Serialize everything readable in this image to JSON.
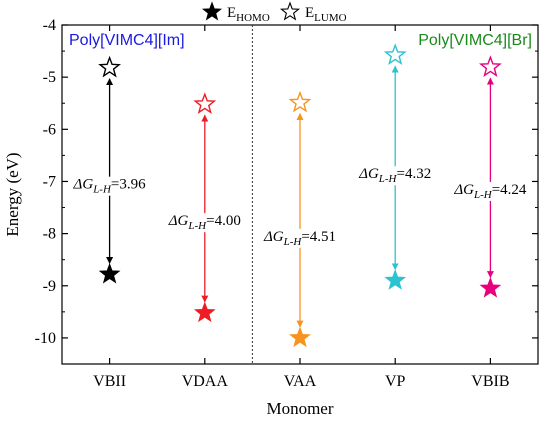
{
  "chart_data": {
    "type": "scatter",
    "xlabel": "Monomer",
    "ylabel": "Energy (eV)",
    "ylim": [
      -10.5,
      -4
    ],
    "yticks": [
      -4,
      -5,
      -6,
      -7,
      -8,
      -9,
      -10
    ],
    "ytick_labels": [
      "-4",
      "-5",
      "-6",
      "-7",
      "-8",
      "-9",
      "-10"
    ],
    "categories": [
      "VBII",
      "VDAA",
      "VAA",
      "VP",
      "VBIB"
    ],
    "legend": {
      "placement": "top-center",
      "entries": [
        {
          "marker": "filled-star",
          "label_main": "E",
          "label_sub": "HOMO"
        },
        {
          "marker": "open-star",
          "label_main": "E",
          "label_sub": "LUMO"
        }
      ]
    },
    "series": [
      {
        "name": "E_HOMO",
        "marker": "filled-star",
        "values": [
          -8.78,
          -9.52,
          -10.0,
          -8.9,
          -9.05
        ]
      },
      {
        "name": "E_LUMO",
        "marker": "open-star",
        "values": [
          -4.82,
          -5.52,
          -5.49,
          -4.58,
          -4.81
        ]
      }
    ],
    "point_colors": [
      "#000000",
      "#ee1c25",
      "#f7931e",
      "#29c4cf",
      "#e6007e"
    ],
    "annotations": [
      {
        "category": "VBII",
        "symbol": "ΔG",
        "subscript": "L-H",
        "value_text": "=3.96",
        "energy": -7.1
      },
      {
        "category": "VDAA",
        "symbol": "ΔG",
        "subscript": "L-H",
        "value_text": "=4.00",
        "energy": -7.8
      },
      {
        "category": "VAA",
        "symbol": "ΔG",
        "subscript": "L-H",
        "value_text": "=4.51",
        "energy": -8.1
      },
      {
        "category": "VP",
        "symbol": "ΔG",
        "subscript": "L-H",
        "value_text": "=4.32",
        "energy": -6.9
      },
      {
        "category": "VBIB",
        "symbol": "ΔG",
        "subscript": "L-H",
        "value_text": "=4.24",
        "energy": -7.2
      }
    ],
    "group_labels": [
      {
        "text": "Poly[VIMC4][Im]",
        "color": "#1a1adf",
        "placement": "top-left"
      },
      {
        "text": "Poly[VIMC4][Br]",
        "color": "#1b8a1b",
        "placement": "top-right"
      }
    ],
    "divider_after_category": "VDAA",
    "grid": false
  }
}
